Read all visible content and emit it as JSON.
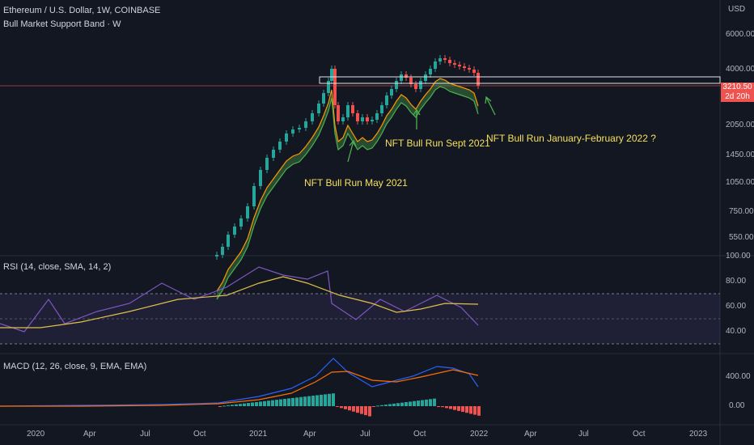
{
  "main": {
    "title": "Ethereum / U.S. Dollar, 1W, COINBASE",
    "indicator": "Bull Market Support Band · W",
    "currency": "USD",
    "price_axis": [
      "6000.00",
      "4000.00",
      "2050.00",
      "1450.00",
      "1050.00",
      "750.00",
      "550.00"
    ],
    "last_price": "3210.50",
    "countdown": "2d 20h",
    "annotations": {
      "may": "NFT Bull Run May 2021",
      "sept": "NFT Bull Run Sept 2021",
      "jan": "NFT Bull Run January-February 2022 ?"
    }
  },
  "rsi": {
    "title": "RSI (14, close, SMA, 14, 2)",
    "axis": [
      "100.00",
      "80.00",
      "60.00",
      "40.00"
    ]
  },
  "macd": {
    "title": "MACD (12, 26, close, 9, EMA, EMA)",
    "axis": [
      "400.00",
      "0.00"
    ]
  },
  "time_axis": [
    "2020",
    "Apr",
    "Jul",
    "Oct",
    "2021",
    "Apr",
    "Jul",
    "Oct",
    "2022",
    "Apr",
    "Jul",
    "Oct",
    "2023"
  ],
  "colors": {
    "up": "#26a69a",
    "down": "#ef5350",
    "band_ema": "#ff9800",
    "band_sma": "#4caf50",
    "rsi": "#7e57c2",
    "rsi_ma": "#e0c14a",
    "macd": "#2962ff",
    "signal": "#ff6d00"
  }
}
